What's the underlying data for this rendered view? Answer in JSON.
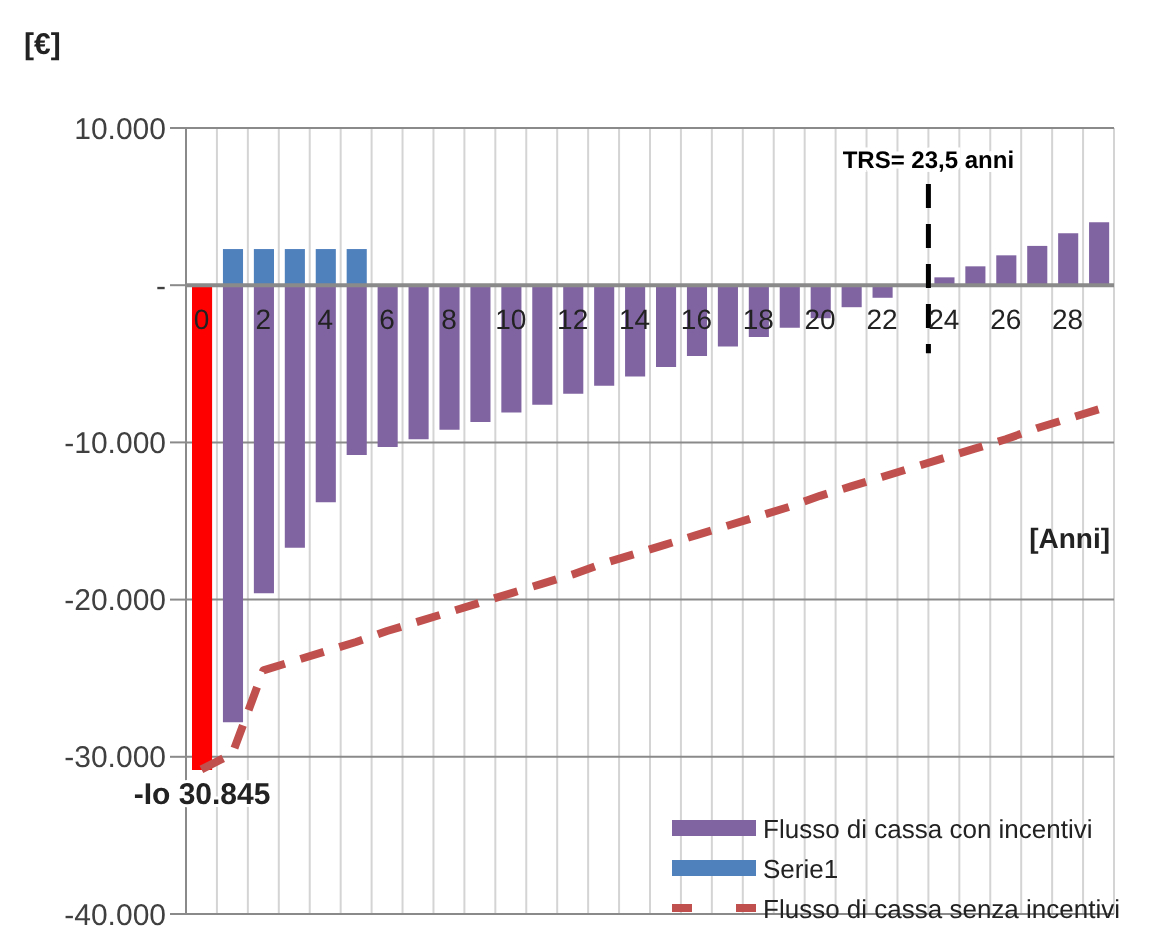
{
  "chart_data": {
    "type": "bar",
    "ylabel": "[€]",
    "xlabel": "[Anni]",
    "x": [
      0,
      1,
      2,
      3,
      4,
      5,
      6,
      7,
      8,
      9,
      10,
      11,
      12,
      13,
      14,
      15,
      16,
      17,
      18,
      19,
      20,
      21,
      22,
      23,
      24,
      25,
      26,
      27,
      28,
      29
    ],
    "xlim": [
      -0.5,
      29.5
    ],
    "xticks": [
      0,
      2,
      4,
      6,
      8,
      10,
      12,
      14,
      16,
      18,
      20,
      22,
      24,
      26,
      28
    ],
    "series": [
      {
        "name": "Flusso di cassa con incentivi",
        "color": "#8064a2",
        "colors": [
          "#ff0000",
          "#8064a2",
          "#8064a2",
          "#8064a2",
          "#8064a2",
          "#8064a2",
          "#8064a2",
          "#8064a2",
          "#8064a2",
          "#8064a2",
          "#8064a2",
          "#8064a2",
          "#8064a2",
          "#8064a2",
          "#8064a2",
          "#8064a2",
          "#8064a2",
          "#8064a2",
          "#8064a2",
          "#8064a2",
          "#8064a2",
          "#8064a2",
          "#8064a2",
          "#8064a2",
          "#8064a2",
          "#8064a2",
          "#8064a2",
          "#8064a2",
          "#8064a2",
          "#8064a2"
        ],
        "values": [
          -30845,
          -27800,
          -19600,
          -16700,
          -13800,
          -10800,
          -10300,
          -9800,
          -9200,
          -8700,
          -8100,
          -7600,
          -6900,
          -6400,
          -5800,
          -5200,
          -4500,
          -3900,
          -3300,
          -2700,
          -2100,
          -1400,
          -800,
          null,
          500,
          1200,
          1900,
          2500,
          3300,
          4000
        ],
        "value_labels": [
          "-Io 30.845",
          null,
          null,
          null,
          null,
          null,
          null,
          null,
          null,
          null,
          null,
          null,
          null,
          null,
          null,
          null,
          null,
          null,
          null,
          null,
          null,
          null,
          null,
          null,
          null,
          null,
          null,
          null,
          null,
          null
        ]
      },
      {
        "name": "Serie1",
        "color": "#4f81bd",
        "values": [
          null,
          2300,
          2300,
          2300,
          2300,
          2300,
          null,
          null,
          null,
          null,
          null,
          null,
          null,
          null,
          null,
          null,
          null,
          null,
          null,
          null,
          null,
          null,
          null,
          null,
          null,
          null,
          null,
          null,
          null,
          null
        ]
      },
      {
        "name": "Flusso di cassa senza incentivi",
        "type": "line",
        "color": "#c0504d",
        "line_style": "dashed",
        "marker": "none",
        "values": [
          -30800,
          -29800,
          -24500,
          -23900,
          -23300,
          -22700,
          -22000,
          -21400,
          -20800,
          -20200,
          -19600,
          -19000,
          -18400,
          -17700,
          -17100,
          -16500,
          -15900,
          -15300,
          -14700,
          -14100,
          -13400,
          -12800,
          -12200,
          -11600,
          -11000,
          -10400,
          -9800,
          -9100,
          -8500,
          -7900
        ]
      }
    ],
    "stacked": true,
    "ylim": [
      -40000,
      10000
    ],
    "yticks": [
      {
        "value": -40000,
        "label": "-40.000"
      },
      {
        "value": -30000,
        "label": "-30.000"
      },
      {
        "value": -20000,
        "label": "-20.000"
      },
      {
        "value": -10000,
        "label": "-10.000"
      },
      {
        "value": 0,
        "label": "-"
      },
      {
        "value": 10000,
        "label": "10.000"
      }
    ],
    "ref_lines": [
      {
        "axis": "x",
        "value": 23.5,
        "label": "TRS= 23,5 anni",
        "color": "#000000",
        "line_style": "dashed"
      }
    ],
    "grid": true,
    "legend": "bottom right"
  }
}
